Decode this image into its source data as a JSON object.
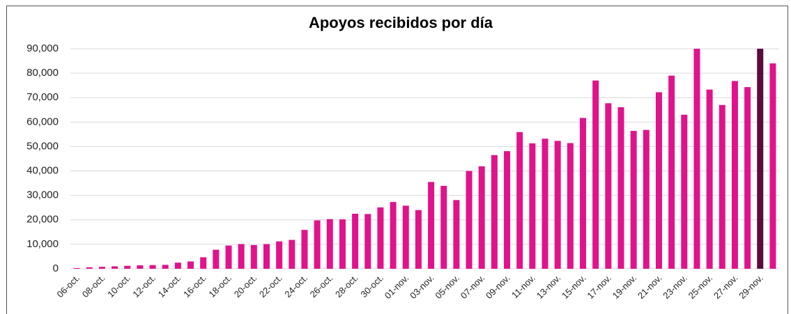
{
  "chart_data": {
    "type": "bar",
    "title": "Apoyos recibidos por día",
    "categories": [
      "06-oct.",
      null,
      "08-oct.",
      null,
      "10-oct.",
      null,
      "12-oct.",
      null,
      "14-oct.",
      null,
      "16-oct.",
      null,
      "18-oct.",
      null,
      "20-oct.",
      null,
      "22-oct.",
      null,
      "24-oct.",
      null,
      "26-oct.",
      null,
      "28-oct.",
      null,
      "30-oct.",
      null,
      "01-nov.",
      null,
      "03-nov.",
      null,
      "05-nov.",
      null,
      "07-nov.",
      null,
      "09-nov.",
      null,
      "11-nov.",
      null,
      "13-nov.",
      null,
      "15-nov.",
      null,
      "17-nov.",
      null,
      "19-nov.",
      null,
      "21-nov.",
      null,
      "23-nov.",
      null,
      "25-nov.",
      null,
      "27-nov.",
      null,
      "29-nov.",
      null
    ],
    "values": [
      300,
      600,
      800,
      1000,
      1200,
      1400,
      1500,
      1600,
      2500,
      3000,
      4700,
      7800,
      9500,
      10100,
      9700,
      10100,
      11200,
      11800,
      15900,
      19800,
      20300,
      20200,
      22500,
      22400,
      25100,
      27300,
      25800,
      24000,
      35500,
      33900,
      28100,
      40000,
      41900,
      46500,
      48100,
      55900,
      51300,
      53200,
      52300,
      51400,
      61700,
      77000,
      67700,
      66100,
      56400,
      56800,
      72200,
      79000,
      63000,
      90000,
      73300,
      67000,
      76800,
      74300,
      90000,
      84000
    ],
    "colors": [
      "#e0138c",
      "#e0138c",
      "#e0138c",
      "#e0138c",
      "#e0138c",
      "#e0138c",
      "#e0138c",
      "#e0138c",
      "#e0138c",
      "#e0138c",
      "#e0138c",
      "#e0138c",
      "#e0138c",
      "#e0138c",
      "#e0138c",
      "#e0138c",
      "#e0138c",
      "#e0138c",
      "#e0138c",
      "#e0138c",
      "#e0138c",
      "#e0138c",
      "#e0138c",
      "#e0138c",
      "#e0138c",
      "#e0138c",
      "#e0138c",
      "#e0138c",
      "#e0138c",
      "#e0138c",
      "#e0138c",
      "#e0138c",
      "#e0138c",
      "#e0138c",
      "#e0138c",
      "#e0138c",
      "#e0138c",
      "#e0138c",
      "#e0138c",
      "#e0138c",
      "#e0138c",
      "#e0138c",
      "#e0138c",
      "#e0138c",
      "#e0138c",
      "#e0138c",
      "#e0138c",
      "#e0138c",
      "#e0138c",
      "#e0138c",
      "#e0138c",
      "#e0138c",
      "#e0138c",
      "#e0138c",
      "#5a0c3d",
      "#e0138c"
    ],
    "ylim": [
      0,
      90000
    ],
    "yticks": [
      0,
      {
        "value": 10000,
        "label": "10,000"
      },
      {
        "value": 20000,
        "label": "20,000"
      },
      {
        "value": 30000,
        "label": "30,000"
      },
      {
        "value": 40000,
        "label": "40,000"
      },
      {
        "value": 50000,
        "label": "50,000"
      },
      {
        "value": 60000,
        "label": "60,000"
      },
      {
        "value": 70000,
        "label": "70,000"
      },
      {
        "value": 80000,
        "label": "80,000"
      },
      {
        "value": 90000,
        "label": "90,000"
      }
    ],
    "grid": true
  }
}
